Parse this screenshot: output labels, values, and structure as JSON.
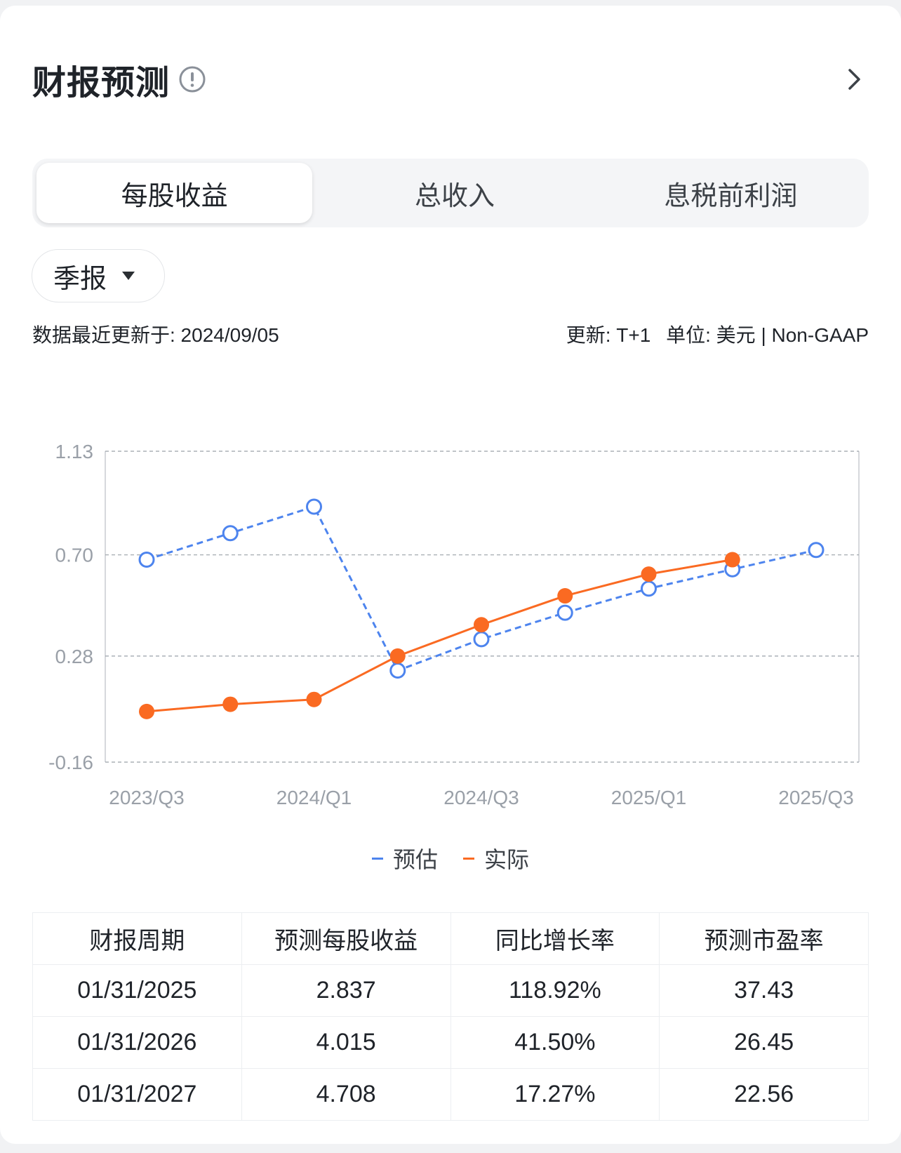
{
  "header": {
    "title": "财报预测",
    "info_icon": "info-circle-icon",
    "chevron_icon": "chevron-right-icon"
  },
  "tabs": [
    {
      "label": "每股收益",
      "active": true
    },
    {
      "label": "总收入",
      "active": false
    },
    {
      "label": "息税前利润",
      "active": false
    }
  ],
  "period_select": {
    "value": "季报",
    "icon": "caret-down-icon"
  },
  "meta": {
    "updated": "数据最近更新于: 2024/09/05",
    "update_freq": "更新: T+1",
    "unit": "单位: 美元 | Non-GAAP"
  },
  "colors": {
    "estimate": "#4d84ee",
    "actual": "#fa6a22"
  },
  "chart_data": {
    "type": "line",
    "x": [
      "2023/Q3",
      "2023/Q4",
      "2024/Q1",
      "2024/Q2",
      "2024/Q3",
      "2024/Q4",
      "2025/Q1",
      "2025/Q2",
      "2025/Q3"
    ],
    "x_tick_labels": [
      "2023/Q3",
      "2024/Q1",
      "2024/Q3",
      "2025/Q1",
      "2025/Q3"
    ],
    "y_tick_labels": [
      "1.13",
      "0.70",
      "0.28",
      "-0.16"
    ],
    "ylim": [
      -0.16,
      1.13
    ],
    "grid": true,
    "legend_position": "bottom-center",
    "series": [
      {
        "name": "预估",
        "style": "dashed",
        "markers": "hollow",
        "values": [
          0.68,
          0.79,
          0.9,
          0.22,
          0.35,
          0.46,
          0.56,
          0.64,
          0.72
        ]
      },
      {
        "name": "实际",
        "style": "solid",
        "markers": "filled",
        "values": [
          0.05,
          0.08,
          0.1,
          0.28,
          0.41,
          0.53,
          0.62,
          0.68,
          null
        ]
      }
    ]
  },
  "legend": [
    {
      "label": "预估",
      "color": "#4d84ee"
    },
    {
      "label": "实际",
      "color": "#fa6a22"
    }
  ],
  "table": {
    "headers": [
      "财报周期",
      "预测每股收益",
      "同比增长率",
      "预测市盈率"
    ],
    "rows": [
      [
        "01/31/2025",
        "2.837",
        "118.92%",
        "37.43"
      ],
      [
        "01/31/2026",
        "4.015",
        "41.50%",
        "26.45"
      ],
      [
        "01/31/2027",
        "4.708",
        "17.27%",
        "22.56"
      ]
    ]
  }
}
